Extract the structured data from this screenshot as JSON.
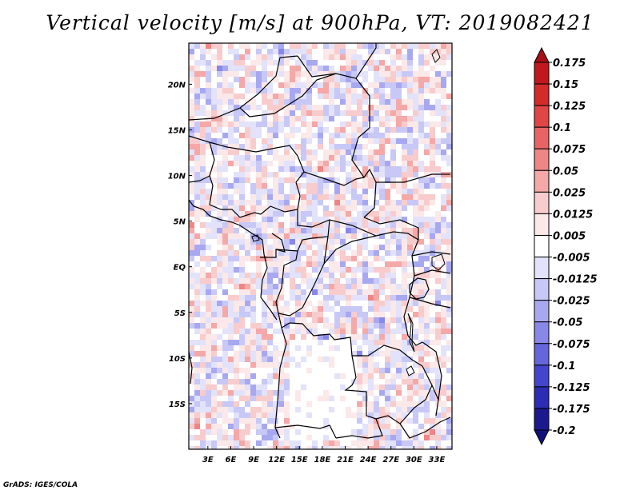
{
  "title": "Vertical velocity [m/s] at 900hPa, VT: 2019082421",
  "credit": "GrADS: IGES/COLA",
  "map": {
    "lon_ticks": [
      "3E",
      "6E",
      "9E",
      "12E",
      "15E",
      "18E",
      "21E",
      "24E",
      "27E",
      "30E",
      "33E"
    ],
    "lat_ticks": [
      "20N",
      "15N",
      "10N",
      "5N",
      "EQ",
      "5S",
      "10S",
      "15S"
    ],
    "lon_range": [
      0.5,
      35
    ],
    "lat_range": [
      -20,
      24.5
    ]
  },
  "colorbar": {
    "labels": [
      "0.175",
      "0.15",
      "0.125",
      "0.1",
      "0.075",
      "0.05",
      "0.025",
      "0.0125",
      "0.005",
      "-0.005",
      "-0.0125",
      "-0.025",
      "-0.05",
      "-0.075",
      "-0.1",
      "-0.125",
      "-0.175",
      "-0.2"
    ],
    "colors": [
      "#a50f15",
      "#c0181d",
      "#d42a2a",
      "#e04646",
      "#e86464",
      "#ee8686",
      "#f4a8a8",
      "#f8cccc",
      "#fbe8e8",
      "#ffffff",
      "#e2e2fa",
      "#c8c8f6",
      "#a8a8f0",
      "#8888e8",
      "#6666dc",
      "#4444cc",
      "#2c2cb4",
      "#1a1a8e",
      "#10107a"
    ]
  }
}
